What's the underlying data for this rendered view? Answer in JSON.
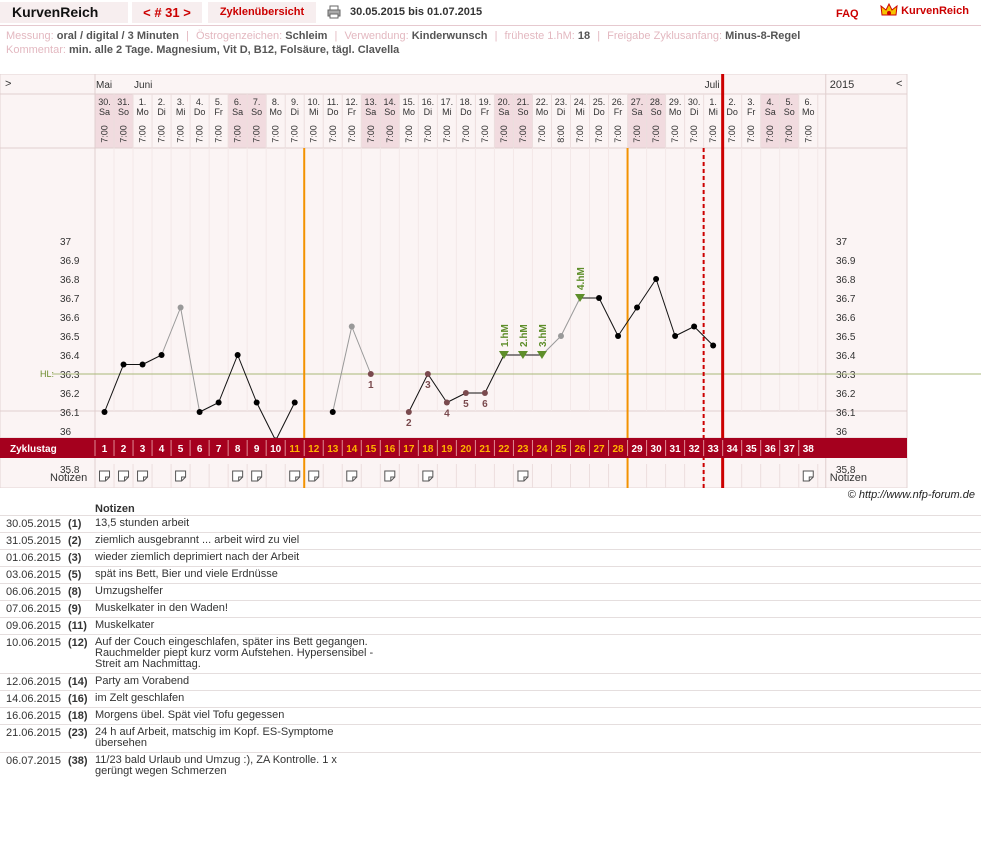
{
  "app": {
    "logo": "KurvenReich",
    "cycle_nav": "< # 31 >",
    "overview_tab": "Zyklenübersicht",
    "date_range": "30.05.2015 bis 01.07.2015",
    "faq": "FAQ",
    "brand": "KurvenReich",
    "colors": {
      "accent": "#cc0000",
      "chart_bg": "#fbf4f4",
      "band": "#a5001e",
      "orange": "#f39200",
      "hl_line": "#a8b878",
      "hm_marker": "#5e8e2a"
    }
  },
  "meta": {
    "messung_label": "Messung:",
    "messung": "oral / digital / 3 Minuten",
    "oestrogen_label": "Östrogenzeichen:",
    "oestrogen": "Schleim",
    "verwendung_label": "Verwendung:",
    "verwendung": "Kinderwunsch",
    "fruehste_label": "früheste 1.hM:",
    "fruehste": "18",
    "freigabe_label": "Freigabe Zyklusanfang:",
    "freigabe": "Minus-8-Regel",
    "kommentar_label": "Kommentar:",
    "kommentar": "min. alle 2 Tage. Magnesium, Vit D, B12, Folsäure, tägl. Clavella"
  },
  "chart_header": {
    "left_arrow": ">",
    "right_arrow": "<",
    "year": "2015",
    "months": [
      {
        "label": "Mai",
        "day_index": 0
      },
      {
        "label": "Juni",
        "day_index": 2
      },
      {
        "label": "Juli",
        "day_index": 32
      }
    ]
  },
  "chart_data": {
    "type": "line",
    "yaxis_ticks": [
      "37",
      "36.9",
      "36.8",
      "36.7",
      "36.6",
      "36.5",
      "36.4",
      "36.3",
      "36.2",
      "36.1",
      "36",
      "35.9",
      "35.8"
    ],
    "ylim": [
      35.8,
      37.0
    ],
    "hl_label": "HL:",
    "hl_value": 36.3,
    "days": [
      {
        "date": "30.",
        "wd": "Sa",
        "time": "7:00",
        "cd": "1",
        "temp": 36.1,
        "style": "ok",
        "weekend": true,
        "note": true
      },
      {
        "date": "31.",
        "wd": "So",
        "time": "7:00",
        "cd": "2",
        "temp": 36.35,
        "style": "ok",
        "weekend": true,
        "note": true
      },
      {
        "date": "1.",
        "wd": "Mo",
        "time": "7:00",
        "cd": "3",
        "temp": 36.35,
        "style": "ok",
        "weekend": false,
        "note": true
      },
      {
        "date": "2.",
        "wd": "Di",
        "time": "7:00",
        "cd": "4",
        "temp": 36.4,
        "style": "ok",
        "weekend": false,
        "note": false
      },
      {
        "date": "3.",
        "wd": "Mi",
        "time": "7:00",
        "cd": "5",
        "temp": 36.65,
        "style": "grey",
        "weekend": false,
        "note": true
      },
      {
        "date": "4.",
        "wd": "Do",
        "time": "7:00",
        "cd": "6",
        "temp": 36.1,
        "style": "ok",
        "weekend": false,
        "note": false
      },
      {
        "date": "5.",
        "wd": "Fr",
        "time": "7:00",
        "cd": "7",
        "temp": 36.15,
        "style": "ok",
        "weekend": false,
        "note": false
      },
      {
        "date": "6.",
        "wd": "Sa",
        "time": "7:00",
        "cd": "8",
        "temp": 36.4,
        "style": "ok",
        "weekend": true,
        "note": true
      },
      {
        "date": "7.",
        "wd": "So",
        "time": "7:00",
        "cd": "9",
        "temp": 36.15,
        "style": "ok",
        "weekend": true,
        "note": true
      },
      {
        "date": "8.",
        "wd": "Mo",
        "time": "7:00",
        "cd": "10",
        "temp": 35.95,
        "style": "ok",
        "weekend": false,
        "note": false
      },
      {
        "date": "9.",
        "wd": "Di",
        "time": "7:00",
        "cd": "11",
        "temp": 36.15,
        "style": "ok",
        "weekend": false,
        "note": true
      },
      {
        "date": "10.",
        "wd": "Mi",
        "time": "7:00",
        "cd": "12",
        "temp": null,
        "style": "ok",
        "weekend": false,
        "note": true
      },
      {
        "date": "11.",
        "wd": "Do",
        "time": "7:00",
        "cd": "13",
        "temp": 36.1,
        "style": "ok",
        "weekend": false,
        "note": false
      },
      {
        "date": "12.",
        "wd": "Fr",
        "time": "7:00",
        "cd": "14",
        "temp": 36.55,
        "style": "grey",
        "weekend": false,
        "note": true
      },
      {
        "date": "13.",
        "wd": "Sa",
        "time": "7:00",
        "cd": "15",
        "temp": 36.3,
        "style": "low",
        "label": "1",
        "weekend": true,
        "note": false
      },
      {
        "date": "14.",
        "wd": "So",
        "time": "7:00",
        "cd": "16",
        "temp": null,
        "style": "ok",
        "weekend": true,
        "note": true
      },
      {
        "date": "15.",
        "wd": "Mo",
        "time": "7:00",
        "cd": "17",
        "temp": 36.1,
        "style": "low",
        "label": "2",
        "weekend": false,
        "note": false
      },
      {
        "date": "16.",
        "wd": "Di",
        "time": "7:00",
        "cd": "18",
        "temp": 36.3,
        "style": "low",
        "label": "3",
        "weekend": false,
        "note": true
      },
      {
        "date": "17.",
        "wd": "Mi",
        "time": "7:00",
        "cd": "19",
        "temp": 36.15,
        "style": "low",
        "label": "4",
        "weekend": false,
        "note": false
      },
      {
        "date": "18.",
        "wd": "Do",
        "time": "7:00",
        "cd": "20",
        "temp": 36.2,
        "style": "low",
        "label": "5",
        "weekend": false,
        "note": false
      },
      {
        "date": "19.",
        "wd": "Fr",
        "time": "7:00",
        "cd": "21",
        "temp": 36.2,
        "style": "low",
        "label": "6",
        "weekend": false,
        "note": false
      },
      {
        "date": "20.",
        "wd": "Sa",
        "time": "7:00",
        "cd": "22",
        "temp": 36.4,
        "style": "hm",
        "hm": "1.hM",
        "weekend": true,
        "note": false
      },
      {
        "date": "21.",
        "wd": "So",
        "time": "7:00",
        "cd": "23",
        "temp": 36.4,
        "style": "hm",
        "hm": "2.hM",
        "weekend": true,
        "note": true
      },
      {
        "date": "22.",
        "wd": "Mo",
        "time": "7:00",
        "cd": "24",
        "temp": 36.4,
        "style": "hm",
        "hm": "3.hM",
        "weekend": false,
        "note": false
      },
      {
        "date": "23.",
        "wd": "Di",
        "time": "8:00",
        "cd": "25",
        "temp": 36.5,
        "style": "grey",
        "weekend": false,
        "note": false
      },
      {
        "date": "24.",
        "wd": "Mi",
        "time": "7:00",
        "cd": "26",
        "temp": 36.7,
        "style": "hm",
        "hm": "4.hM",
        "weekend": false,
        "note": false
      },
      {
        "date": "25.",
        "wd": "Do",
        "time": "7:00",
        "cd": "27",
        "temp": 36.7,
        "style": "ok",
        "weekend": false,
        "note": false
      },
      {
        "date": "26.",
        "wd": "Fr",
        "time": "7:00",
        "cd": "28",
        "temp": 36.5,
        "style": "ok",
        "weekend": false,
        "note": false
      },
      {
        "date": "27.",
        "wd": "Sa",
        "time": "7:00",
        "cd": "29",
        "temp": 36.65,
        "style": "ok",
        "weekend": true,
        "note": false
      },
      {
        "date": "28.",
        "wd": "So",
        "time": "7:00",
        "cd": "30",
        "temp": 36.8,
        "style": "ok",
        "weekend": true,
        "note": false
      },
      {
        "date": "29.",
        "wd": "Mo",
        "time": "7:00",
        "cd": "31",
        "temp": 36.5,
        "style": "ok",
        "weekend": false,
        "note": false
      },
      {
        "date": "30.",
        "wd": "Di",
        "time": "7:00",
        "cd": "32",
        "temp": 36.55,
        "style": "ok",
        "weekend": false,
        "note": false
      },
      {
        "date": "1.",
        "wd": "Mi",
        "time": "7:00",
        "cd": "33",
        "temp": 36.45,
        "style": "ok",
        "weekend": false,
        "note": false
      },
      {
        "date": "2.",
        "wd": "Do",
        "time": "7:00",
        "cd": "34",
        "temp": null,
        "style": "ok",
        "weekend": false,
        "note": false
      },
      {
        "date": "3.",
        "wd": "Fr",
        "time": "7:00",
        "cd": "35",
        "temp": null,
        "style": "ok",
        "weekend": false,
        "note": false
      },
      {
        "date": "4.",
        "wd": "Sa",
        "time": "7:00",
        "cd": "36",
        "temp": null,
        "style": "ok",
        "weekend": true,
        "note": false
      },
      {
        "date": "5.",
        "wd": "So",
        "time": "7:00",
        "cd": "37",
        "temp": null,
        "style": "ok",
        "weekend": true,
        "note": false
      },
      {
        "date": "6.",
        "wd": "Mo",
        "time": "7:00",
        "cd": "38",
        "temp": null,
        "style": "ok",
        "weekend": false,
        "note": true
      }
    ],
    "orange_lines": [
      {
        "day_index": 10
      },
      {
        "day_index": 27
      }
    ],
    "red_dotted_after_day_index": 32,
    "red_solid_after_day_index": 33,
    "band_label": "Zyklustag",
    "notes_label": "Notizen"
  },
  "copyright": "© http://www.nfp-forum.de",
  "notes": {
    "header": "Notizen",
    "rows": [
      {
        "date": "30.05.2015",
        "cd": "(1)",
        "text": [
          "13,5 stunden arbeit"
        ]
      },
      {
        "date": "31.05.2015",
        "cd": "(2)",
        "text": [
          "ziemlich ausgebrannt ... arbeit wird zu viel"
        ]
      },
      {
        "date": "01.06.2015",
        "cd": "(3)",
        "text": [
          "wieder ziemlich deprimiert nach der Arbeit"
        ]
      },
      {
        "date": "03.06.2015",
        "cd": "(5)",
        "text": [
          "spät ins Bett, Bier und viele Erdnüsse"
        ]
      },
      {
        "date": "06.06.2015",
        "cd": "(8)",
        "text": [
          "Umzugshelfer"
        ]
      },
      {
        "date": "07.06.2015",
        "cd": "(9)",
        "text": [
          "Muskelkater in den Waden!"
        ]
      },
      {
        "date": "09.06.2015",
        "cd": "(11)",
        "text": [
          "Muskelkater"
        ]
      },
      {
        "date": "10.06.2015",
        "cd": "(12)",
        "text": [
          "Auf der Couch eingeschlafen, später ins Bett gegangen.",
          "Rauchmelder piept kurz vorm Aufstehen. Hypersensibel -",
          "Streit am Nachmittag."
        ]
      },
      {
        "date": "12.06.2015",
        "cd": "(14)",
        "text": [
          "Party am Vorabend"
        ]
      },
      {
        "date": "14.06.2015",
        "cd": "(16)",
        "text": [
          "im Zelt geschlafen"
        ]
      },
      {
        "date": "16.06.2015",
        "cd": "(18)",
        "text": [
          "Morgens übel. Spät viel Tofu gegessen"
        ]
      },
      {
        "date": "21.06.2015",
        "cd": "(23)",
        "text": [
          "24 h auf Arbeit, matschig im Kopf. ES-Symptome",
          "übersehen"
        ]
      },
      {
        "date": "06.07.2015",
        "cd": "(38)",
        "text": [
          "11/23 bald Urlaub und Umzug :), ZA Kontrolle. 1 x",
          "gerüngt wegen Schmerzen"
        ]
      }
    ]
  }
}
